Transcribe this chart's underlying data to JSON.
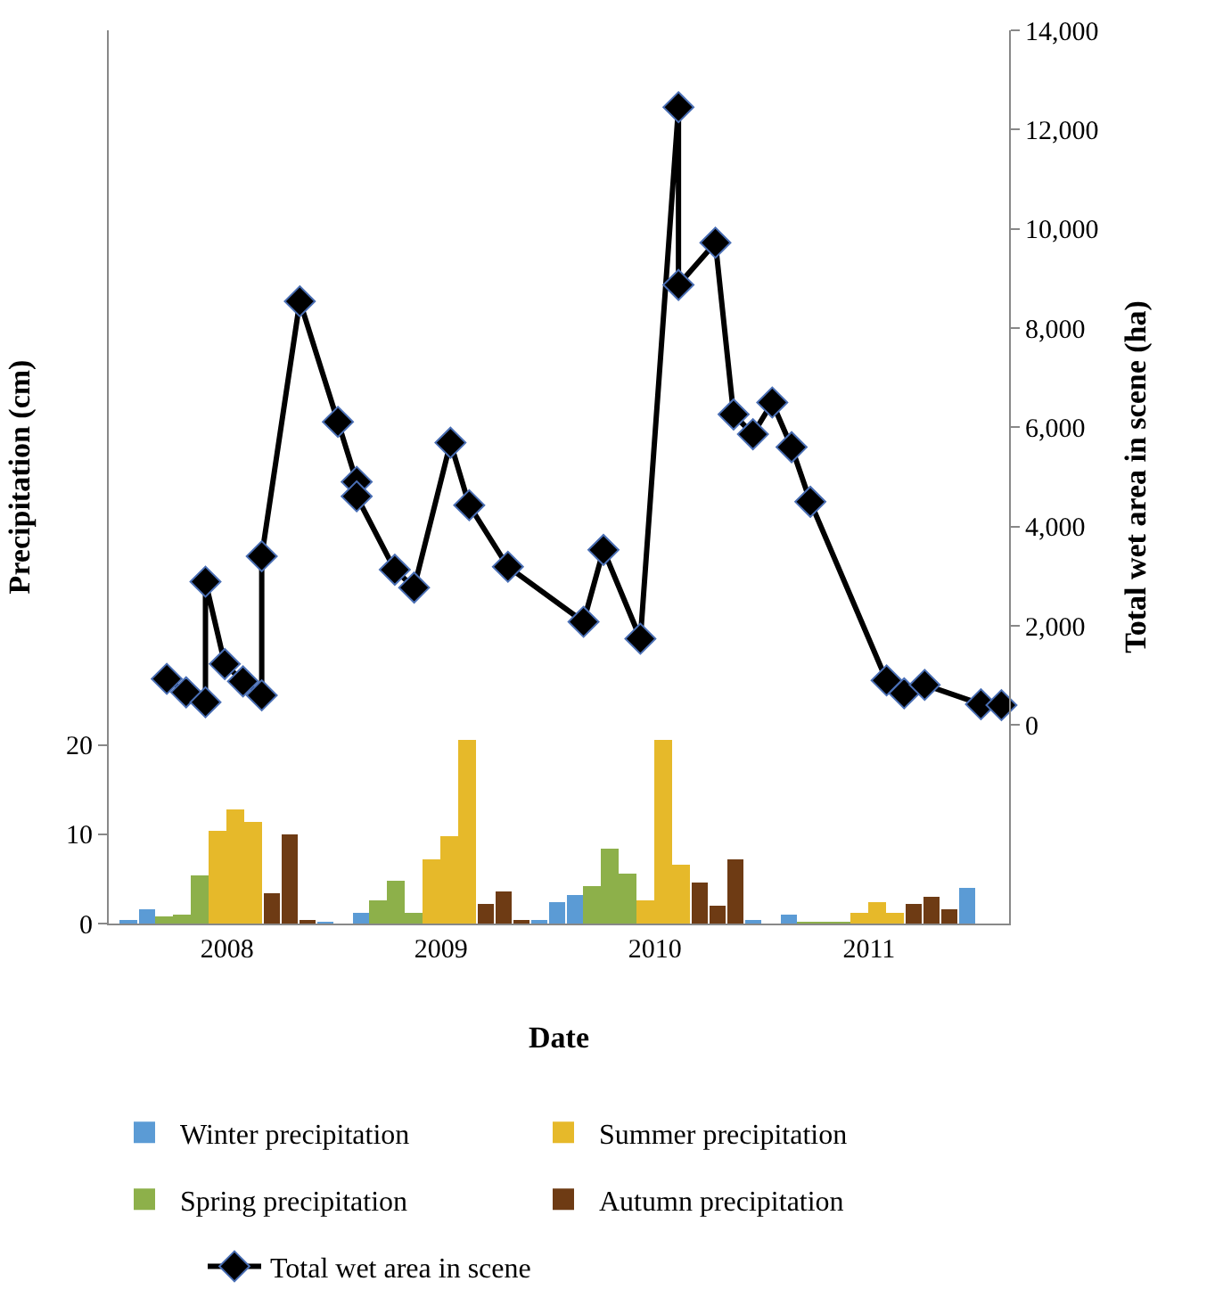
{
  "chart_data": {
    "type": "bar",
    "xlabel": "Date",
    "ylabel": "Precipitation (cm)",
    "y2label": "Total wet area in scene (ha)",
    "x": [
      "2008-01-15",
      "2008-02-15",
      "2008-03-15",
      "2008-04-15",
      "2008-05-15",
      "2008-06-15",
      "2008-07-15",
      "2008-08-15",
      "2008-09-15",
      "2008-10-15",
      "2008-11-15",
      "2008-12-15",
      "2009-01-15",
      "2009-02-15",
      "2009-03-15",
      "2009-04-15",
      "2009-05-15",
      "2009-06-15",
      "2009-07-15",
      "2009-08-15",
      "2009-09-15",
      "2009-10-15",
      "2009-11-15",
      "2009-12-15",
      "2010-01-15",
      "2010-02-15",
      "2010-03-15",
      "2010-04-15",
      "2010-05-15",
      "2010-06-15",
      "2010-07-15",
      "2010-08-15",
      "2010-09-15",
      "2010-10-15",
      "2010-11-15",
      "2010-12-15",
      "2011-01-15",
      "2011-02-15",
      "2011-03-15",
      "2011-04-15",
      "2011-05-15",
      "2011-06-15",
      "2011-07-15",
      "2011-08-15",
      "2011-09-15",
      "2011-10-15",
      "2011-11-15",
      "2011-12-15"
    ],
    "series": [
      {
        "name": "Winter precipitation",
        "color": "#5b9bd5",
        "values": [
          0.5,
          1.5,
          null,
          null,
          null,
          null,
          null,
          null,
          null,
          null,
          null,
          0.1,
          0,
          1.1,
          null,
          null,
          null,
          null,
          null,
          null,
          null,
          null,
          null,
          0.5,
          2.3,
          3.2,
          null,
          null,
          null,
          null,
          null,
          null,
          null,
          null,
          null,
          0.5,
          0,
          1.0,
          null,
          null,
          null,
          null,
          null,
          null,
          null,
          null,
          null,
          3.9
        ]
      },
      {
        "name": "Summer precipitation",
        "color": "#e6b92a",
        "values": [
          null,
          null,
          null,
          null,
          null,
          10.3,
          12.7,
          11.3,
          null,
          null,
          null,
          null,
          null,
          null,
          null,
          null,
          null,
          7.1,
          9.7,
          20.5,
          null,
          null,
          null,
          null,
          null,
          null,
          null,
          null,
          null,
          2.5,
          20.5,
          6.5,
          null,
          null,
          null,
          null,
          null,
          null,
          null,
          null,
          null,
          1.1,
          2.4,
          1.2,
          null,
          null,
          null,
          null
        ]
      },
      {
        "name": "Spring precipitation",
        "color": "#8db04a",
        "values": [
          null,
          null,
          0.7,
          0.9,
          5.3,
          null,
          null,
          null,
          null,
          null,
          null,
          null,
          null,
          null,
          2.5,
          4.7,
          1.1,
          null,
          null,
          null,
          null,
          null,
          null,
          null,
          null,
          null,
          4.1,
          8.3,
          5.5,
          null,
          null,
          null,
          null,
          null,
          null,
          null,
          null,
          null,
          0.1,
          0.1,
          0.1,
          null,
          null,
          null,
          null,
          null,
          null,
          null
        ]
      },
      {
        "name": "Autumn precipitation",
        "color": "#6e3b14",
        "values": [
          null,
          null,
          null,
          null,
          null,
          null,
          null,
          null,
          3.4,
          9.9,
          0.5,
          null,
          null,
          null,
          null,
          null,
          null,
          null,
          null,
          null,
          2.1,
          3.6,
          0.5,
          null,
          null,
          null,
          null,
          null,
          null,
          null,
          null,
          null,
          4.5,
          2.0,
          7.2,
          null,
          null,
          null,
          null,
          null,
          null,
          null,
          null,
          null,
          2.2,
          3.0,
          1.5,
          null
        ]
      },
      {
        "name": "Total wet area in scene",
        "type": "line",
        "axis": "y2",
        "color": "#000000",
        "marker": "diamond",
        "x": [
          "2008-03-20",
          "2008-04-22",
          "2008-05-25",
          "2008-05-25",
          "2008-06-27",
          "2008-07-28",
          "2008-08-29",
          "2008-08-29",
          "2008-11-02",
          "2009-01-06",
          "2009-02-07",
          "2009-02-07",
          "2009-04-13",
          "2009-05-16",
          "2009-07-17",
          "2009-08-18",
          "2009-10-23",
          "2010-03-01",
          "2010-04-04",
          "2010-06-06",
          "2010-08-10",
          "2010-08-10",
          "2010-10-12",
          "2010-11-12",
          "2010-12-15",
          "2011-01-17",
          "2011-02-19",
          "2011-03-23",
          "2011-07-31",
          "2011-08-30",
          "2011-10-04",
          "2012-01-08",
          "2012-02-12"
        ],
        "values": [
          930,
          660,
          460,
          2890,
          1230,
          880,
          600,
          3400,
          8540,
          6110,
          4900,
          4610,
          3130,
          2770,
          5690,
          4430,
          3190,
          2080,
          3530,
          1740,
          12450,
          8870,
          9720,
          6260,
          5860,
          6500,
          5600,
          4500,
          900,
          640,
          810,
          420,
          400
        ]
      }
    ],
    "xlim": [
      "2007-12-12",
      "2012-02-25"
    ],
    "xticks": [
      {
        "value": "2008-07-01",
        "label": "2008"
      },
      {
        "value": "2009-07-01",
        "label": "2009"
      },
      {
        "value": "2010-07-01",
        "label": "2010"
      },
      {
        "value": "2011-07-01",
        "label": "2011"
      }
    ],
    "ylim": [
      0,
      100
    ],
    "yticks": [
      0,
      10,
      20
    ],
    "y2lim": [
      -4000,
      14000
    ],
    "y2ticks": [
      0,
      {
        "value": 2000,
        "label": "2,000"
      },
      {
        "value": 4000,
        "label": "4,000"
      },
      {
        "value": 6000,
        "label": "6,000"
      },
      {
        "value": 8000,
        "label": "8,000"
      },
      {
        "value": 10000,
        "label": "10,000"
      },
      {
        "value": 12000,
        "label": "12,000"
      },
      {
        "value": 14000,
        "label": "14,000"
      }
    ],
    "legend": "bottom"
  }
}
